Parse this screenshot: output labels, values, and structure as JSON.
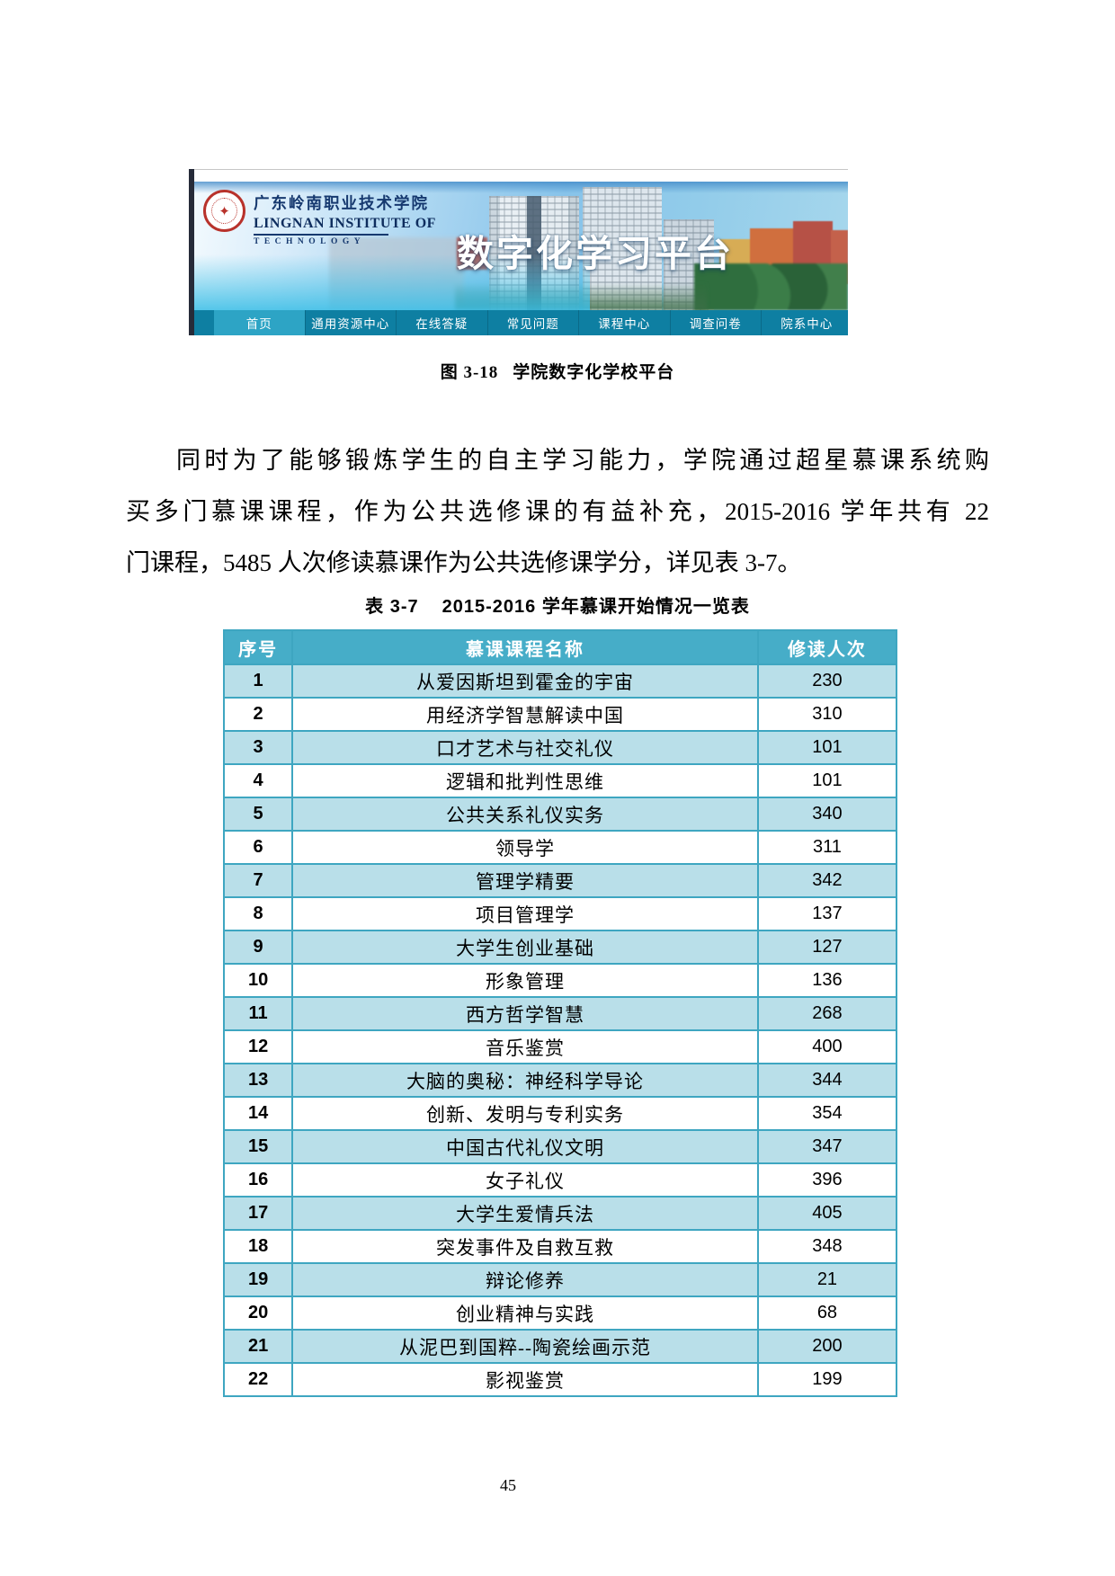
{
  "page": {
    "number": "45"
  },
  "figure": {
    "caption_label": "图 3-18",
    "caption_text": "学院数字化学校平台",
    "site": {
      "org_cn": "广东岭南职业技术学院",
      "org_en1": "LINGNAN INSTITUTE OF",
      "org_en2": "TECHNOLOGY",
      "logo_glyph": "✦",
      "banner_title": "数字化学习平台",
      "nav": [
        {
          "label": "首页",
          "active": true
        },
        {
          "label": "通用资源中心"
        },
        {
          "label": "在线答疑"
        },
        {
          "label": "常见问题"
        },
        {
          "label": "课程中心"
        },
        {
          "label": "调查问卷"
        },
        {
          "label": "院系中心"
        }
      ]
    }
  },
  "paragraph": {
    "lines": [
      "同时为了能够锻炼学生的自主学习能力，学院通过超星慕课系统购",
      "买多门慕课课程，作为公共选修课的有益补充，2015-2016 学年共有 22",
      "门课程，5485 人次修读慕课作为公共选修课学分，详见表 3-7。"
    ]
  },
  "table": {
    "caption_label": "表 3-7",
    "caption_text": "2015-2016 学年慕课开始情况一览表",
    "headers": [
      "序号",
      "慕课课程名称",
      "修读人次"
    ],
    "rows": [
      {
        "no": "1",
        "name": "从爱因斯坦到霍金的宇宙",
        "count": "230"
      },
      {
        "no": "2",
        "name": "用经济学智慧解读中国",
        "count": "310"
      },
      {
        "no": "3",
        "name": "口才艺术与社交礼仪",
        "count": "101"
      },
      {
        "no": "4",
        "name": "逻辑和批判性思维",
        "count": "101"
      },
      {
        "no": "5",
        "name": "公共关系礼仪实务",
        "count": "340"
      },
      {
        "no": "6",
        "name": "领导学",
        "count": "311"
      },
      {
        "no": "7",
        "name": "管理学精要",
        "count": "342"
      },
      {
        "no": "8",
        "name": "项目管理学",
        "count": "137"
      },
      {
        "no": "9",
        "name": "大学生创业基础",
        "count": "127"
      },
      {
        "no": "10",
        "name": "形象管理",
        "count": "136"
      },
      {
        "no": "11",
        "name": "西方哲学智慧",
        "count": "268"
      },
      {
        "no": "12",
        "name": "音乐鉴赏",
        "count": "400"
      },
      {
        "no": "13",
        "name": "大脑的奥秘：神经科学导论",
        "count": "344"
      },
      {
        "no": "14",
        "name": "创新、发明与专利实务",
        "count": "354"
      },
      {
        "no": "15",
        "name": "中国古代礼仪文明",
        "count": "347"
      },
      {
        "no": "16",
        "name": "女子礼仪",
        "count": "396"
      },
      {
        "no": "17",
        "name": "大学生爱情兵法",
        "count": "405"
      },
      {
        "no": "18",
        "name": "突发事件及自救互救",
        "count": "348"
      },
      {
        "no": "19",
        "name": "辩论修养",
        "count": "21"
      },
      {
        "no": "20",
        "name": "创业精神与实践",
        "count": "68"
      },
      {
        "no": "21",
        "name": "从泥巴到国粹--陶瓷绘画示范",
        "count": "200"
      },
      {
        "no": "22",
        "name": "影视鉴赏",
        "count": "199"
      }
    ]
  },
  "colors": {
    "nav_teal": "#0e7fa2",
    "nav_active": "#2da4c5",
    "table_header": "#46adc8",
    "table_row_alt": "#b9dfe9",
    "table_border": "#3ea6c1",
    "seal_red": "#b8322b",
    "school_navy": "#16396f"
  }
}
